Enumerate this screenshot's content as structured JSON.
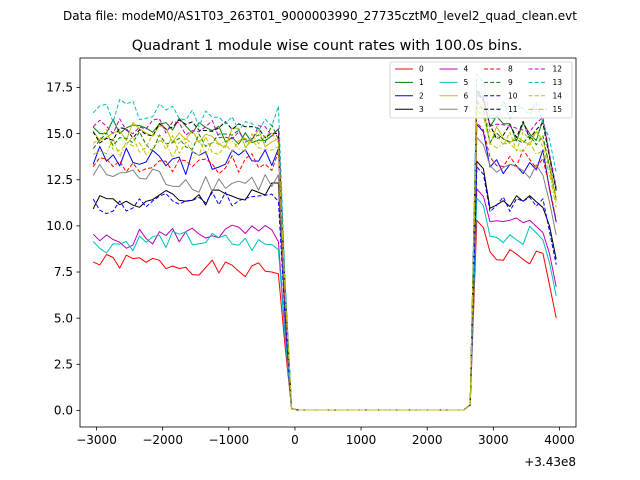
{
  "chart_data": {
    "type": "line",
    "suptitle": "Data file: modeM0/AS1T03_263T01_9000003990_27735cztM0_level2_quad_clean.evt",
    "title": "Quadrant 1 module wise count rates with 100.0s bins.",
    "xlabel": "",
    "ylabel": "",
    "x_offset_label": "+3.43e8",
    "xlim": [
      -3250,
      4250
    ],
    "ylim": [
      -0.9,
      19.1
    ],
    "xticks": [
      -3000,
      -2000,
      -1000,
      0,
      1000,
      2000,
      3000,
      4000
    ],
    "xtick_labels": [
      "−3000",
      "−2000",
      "−1000",
      "0",
      "1000",
      "2000",
      "3000",
      "4000"
    ],
    "yticks": [
      0,
      2.5,
      5,
      7.5,
      10,
      12.5,
      15,
      17.5
    ],
    "ytick_labels": [
      "0.0",
      "2.5",
      "5.0",
      "7.5",
      "10.0",
      "12.5",
      "15.0",
      "17.5"
    ],
    "legend_position": "top-right",
    "segments": [
      {
        "x_start": -3050,
        "x_end": -250,
        "step": 100
      },
      {
        "x_start": 2750,
        "x_end": 3950,
        "step": 100
      }
    ],
    "gap": [
      -150,
      -50,
      50,
      2550,
      2650
    ],
    "series": [
      {
        "name": "0",
        "color": "#ff0000",
        "dash": "solid",
        "base1": 7.8,
        "base2": 8.3,
        "amp": 0.45,
        "seed": 1
      },
      {
        "name": "1",
        "color": "#008000",
        "dash": "solid",
        "base1": 15.3,
        "base2": 15.3,
        "amp": 0.7,
        "seed": 2
      },
      {
        "name": "2",
        "color": "#0000ff",
        "dash": "solid",
        "base1": 13.7,
        "base2": 13.5,
        "amp": 0.7,
        "seed": 3
      },
      {
        "name": "3",
        "color": "#000000",
        "dash": "solid",
        "base1": 11.6,
        "base2": 11.5,
        "amp": 0.55,
        "seed": 4
      },
      {
        "name": "4",
        "color": "#bf00bf",
        "dash": "solid",
        "base1": 9.4,
        "base2": 10.0,
        "amp": 0.5,
        "seed": 5
      },
      {
        "name": "5",
        "color": "#00bfbf",
        "dash": "solid",
        "base1": 9.0,
        "base2": 9.5,
        "amp": 0.5,
        "seed": 6
      },
      {
        "name": "6",
        "color": "#bfbf00",
        "dash": "solid",
        "base1": 14.9,
        "base2": 14.8,
        "amp": 0.6,
        "seed": 7
      },
      {
        "name": "7",
        "color": "#808080",
        "dash": "solid",
        "base1": 12.6,
        "base2": 12.8,
        "amp": 0.6,
        "seed": 8
      },
      {
        "name": "8",
        "color": "#ff0000",
        "dash": "dashed",
        "base1": 13.4,
        "base2": 13.6,
        "amp": 0.55,
        "seed": 9
      },
      {
        "name": "9",
        "color": "#008000",
        "dash": "dashed",
        "base1": 14.8,
        "base2": 14.7,
        "amp": 0.55,
        "seed": 10
      },
      {
        "name": "10",
        "color": "#0000ff",
        "dash": "dashed",
        "base1": 11.3,
        "base2": 11.2,
        "amp": 0.5,
        "seed": 11
      },
      {
        "name": "11",
        "color": "#000000",
        "dash": "dashed",
        "base1": 15.0,
        "base2": 15.2,
        "amp": 0.5,
        "seed": 12
      },
      {
        "name": "12",
        "color": "#bf00bf",
        "dash": "dashed",
        "base1": 15.2,
        "base2": 15.4,
        "amp": 0.5,
        "seed": 13
      },
      {
        "name": "13",
        "color": "#00bfbf",
        "dash": "dashed",
        "base1": 16.0,
        "base2": 16.2,
        "amp": 0.7,
        "seed": 14
      },
      {
        "name": "14",
        "color": "#bfbf00",
        "dash": "dashed",
        "base1": 14.6,
        "base2": 14.6,
        "amp": 0.55,
        "seed": 15
      },
      {
        "name": "15",
        "color": "#bfbf00",
        "dash": "dashdot",
        "base1": 14.4,
        "base2": 14.3,
        "amp": 0.55,
        "seed": 16
      }
    ]
  }
}
